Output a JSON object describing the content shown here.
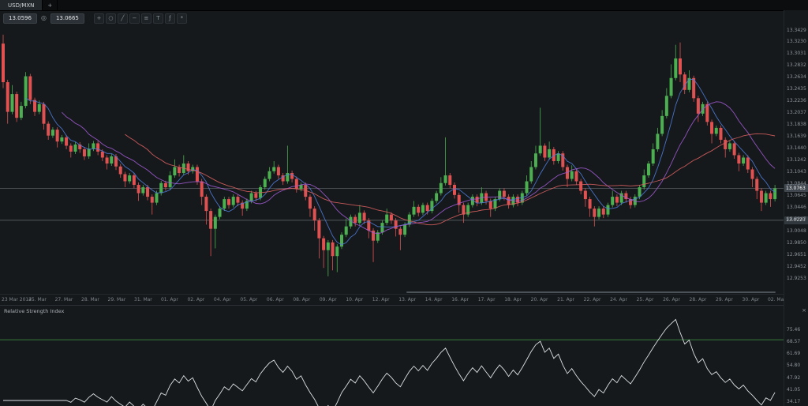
{
  "tabbar": {
    "active_tab": "USD/MXN",
    "new_tab_label": "+"
  },
  "toolbar": {
    "bid": "13.0596",
    "ask": "13.0665",
    "link_glyph": "◎",
    "icons": [
      {
        "name": "crosshair-icon",
        "glyph": "+"
      },
      {
        "name": "zoom-icon",
        "glyph": "○"
      },
      {
        "name": "trendline-icon",
        "glyph": "╱"
      },
      {
        "name": "hline-icon",
        "glyph": "−"
      },
      {
        "name": "fibonacci-icon",
        "glyph": "≡"
      },
      {
        "name": "text-icon",
        "glyph": "T"
      },
      {
        "name": "indicators-icon",
        "glyph": "ƒ"
      },
      {
        "name": "settings-icon",
        "glyph": "*"
      }
    ]
  },
  "price_axis": {
    "labels": [
      "13.3429",
      "13.3230",
      "13.3031",
      "13.2832",
      "13.2634",
      "13.2435",
      "13.2236",
      "13.2037",
      "13.1838",
      "13.1639",
      "13.1440",
      "13.1242",
      "13.1043",
      "13.0844",
      "13.0645",
      "13.0446",
      "13.0247",
      "13.0048",
      "12.9850",
      "12.9651",
      "12.9452",
      "12.9253"
    ]
  },
  "date_axis": {
    "labels": [
      "23 Mar 2014",
      "25. Mar",
      "27. Mar",
      "28. Mar",
      "29. Mar",
      "31. Mar",
      "01. Apr",
      "02. Apr",
      "04. Apr",
      "05. Apr",
      "06. Apr",
      "08. Apr",
      "09. Apr",
      "10. Apr",
      "12. Apr",
      "13. Apr",
      "14. Apr",
      "16. Apr",
      "17. Apr",
      "18. Apr",
      "20. Apr",
      "21. Apr",
      "22. Apr",
      "24. Apr",
      "25. Apr",
      "26. Apr",
      "28. Apr",
      "29. Apr",
      "30. Apr",
      "02. May"
    ]
  },
  "price_markers": {
    "current": "13.0763",
    "level": "13.0223"
  },
  "rsi_panel": {
    "title": "Relative Strength Index",
    "close_glyph": "×",
    "axis_labels": [
      "75.46",
      "68.57",
      "61.69",
      "54.80",
      "47.92",
      "41.05",
      "34.17"
    ]
  },
  "colors": {
    "bull": "#4caf50",
    "bear": "#e05252",
    "ma_fast": "#4f7bd9",
    "ma_mid": "#a15ad1",
    "ma_slow": "#d95f5f",
    "rsi_line": "#dde0e3",
    "rsi_overbought": "#3f9c46",
    "rsi_oversold": "#9c3f3f",
    "level_line": "#a7adb3"
  },
  "chart_data": {
    "type": "candlestick",
    "symbol": "USD/MXN",
    "price_range": {
      "max": 13.3429,
      "min": 12.9253,
      "step": 0.0199
    },
    "horizontal_lines": [
      13.0763,
      13.0223
    ],
    "moving_averages": [
      {
        "name": "ma-fast",
        "period": 6
      },
      {
        "name": "ma-mid",
        "period": 14
      },
      {
        "name": "ma-slow",
        "period": 28
      }
    ],
    "rsi": {
      "period": 14,
      "overbought": 70,
      "oversold": 30
    },
    "candles": [
      [
        13.32,
        13.335,
        13.245,
        13.255
      ],
      [
        13.255,
        13.259,
        13.185,
        13.205
      ],
      [
        13.205,
        13.25,
        13.201,
        13.235
      ],
      [
        13.235,
        13.239,
        13.188,
        13.195
      ],
      [
        13.195,
        13.222,
        13.191,
        13.215
      ],
      [
        13.215,
        13.272,
        13.211,
        13.265
      ],
      [
        13.265,
        13.269,
        13.218,
        13.225
      ],
      [
        13.225,
        13.229,
        13.198,
        13.205
      ],
      [
        13.205,
        13.224,
        13.201,
        13.218
      ],
      [
        13.218,
        13.222,
        13.175,
        13.185
      ],
      [
        13.185,
        13.189,
        13.158,
        13.165
      ],
      [
        13.165,
        13.179,
        13.161,
        13.175
      ],
      [
        13.175,
        13.179,
        13.145,
        13.155
      ],
      [
        13.155,
        13.166,
        13.151,
        13.162
      ],
      [
        13.162,
        13.166,
        13.142,
        13.148
      ],
      [
        13.148,
        13.152,
        13.128,
        13.138
      ],
      [
        13.138,
        13.154,
        13.134,
        13.15
      ],
      [
        13.15,
        13.154,
        13.136,
        13.142
      ],
      [
        13.142,
        13.146,
        13.124,
        13.13
      ],
      [
        13.13,
        13.152,
        13.126,
        13.143
      ],
      [
        13.143,
        13.156,
        13.139,
        13.152
      ],
      [
        13.152,
        13.156,
        13.132,
        13.138
      ],
      [
        13.138,
        13.142,
        13.122,
        13.128
      ],
      [
        13.128,
        13.132,
        13.108,
        13.118
      ],
      [
        13.118,
        13.134,
        13.114,
        13.13
      ],
      [
        13.13,
        13.134,
        13.107,
        13.113
      ],
      [
        13.113,
        13.117,
        13.094,
        13.1
      ],
      [
        13.1,
        13.104,
        13.078,
        13.088
      ],
      [
        13.088,
        13.102,
        13.084,
        13.098
      ],
      [
        13.098,
        13.102,
        13.076,
        13.082
      ],
      [
        13.082,
        13.086,
        13.055,
        13.068
      ],
      [
        13.068,
        13.082,
        13.064,
        13.078
      ],
      [
        13.078,
        13.082,
        13.056,
        13.062
      ],
      [
        13.062,
        13.066,
        13.032,
        13.052
      ],
      [
        13.052,
        13.072,
        13.048,
        13.068
      ],
      [
        13.068,
        13.089,
        13.064,
        13.085
      ],
      [
        13.085,
        13.089,
        13.072,
        13.078
      ],
      [
        13.078,
        13.105,
        13.074,
        13.098
      ],
      [
        13.098,
        13.125,
        13.094,
        13.112
      ],
      [
        13.112,
        13.116,
        13.096,
        13.102
      ],
      [
        13.102,
        13.132,
        13.098,
        13.118
      ],
      [
        13.118,
        13.122,
        13.099,
        13.105
      ],
      [
        13.105,
        13.116,
        13.101,
        13.112
      ],
      [
        13.112,
        13.116,
        13.082,
        13.088
      ],
      [
        13.088,
        13.092,
        13.048,
        13.062
      ],
      [
        13.062,
        13.066,
        13.015,
        13.038
      ],
      [
        13.038,
        13.042,
        12.962,
        13.008
      ],
      [
        13.008,
        13.032,
        12.975,
        13.028
      ],
      [
        13.028,
        13.046,
        13.024,
        13.042
      ],
      [
        13.042,
        13.062,
        13.038,
        13.058
      ],
      [
        13.058,
        13.062,
        13.042,
        13.048
      ],
      [
        13.048,
        13.066,
        13.044,
        13.062
      ],
      [
        13.062,
        13.066,
        13.046,
        13.052
      ],
      [
        13.052,
        13.056,
        13.03,
        13.042
      ],
      [
        13.042,
        13.059,
        13.038,
        13.055
      ],
      [
        13.055,
        13.072,
        13.051,
        13.068
      ],
      [
        13.068,
        13.072,
        13.054,
        13.06
      ],
      [
        13.06,
        13.082,
        13.056,
        13.078
      ],
      [
        13.078,
        13.096,
        13.074,
        13.092
      ],
      [
        13.092,
        13.112,
        13.088,
        13.105
      ],
      [
        13.105,
        13.122,
        13.101,
        13.112
      ],
      [
        13.112,
        13.116,
        13.092,
        13.098
      ],
      [
        13.098,
        13.102,
        13.082,
        13.088
      ],
      [
        13.088,
        13.148,
        13.084,
        13.102
      ],
      [
        13.102,
        13.106,
        13.086,
        13.092
      ],
      [
        13.092,
        13.096,
        13.069,
        13.075
      ],
      [
        13.075,
        13.086,
        13.071,
        13.082
      ],
      [
        13.082,
        13.086,
        13.056,
        13.062
      ],
      [
        13.062,
        13.066,
        13.028,
        13.042
      ],
      [
        13.042,
        13.046,
        13.005,
        13.022
      ],
      [
        13.022,
        13.026,
        12.958,
        12.992
      ],
      [
        12.992,
        12.996,
        12.942,
        12.972
      ],
      [
        12.972,
        12.989,
        12.928,
        12.985
      ],
      [
        12.985,
        12.989,
        12.938,
        12.962
      ],
      [
        12.962,
        12.982,
        12.935,
        12.978
      ],
      [
        12.978,
        13.002,
        12.974,
        12.998
      ],
      [
        12.998,
        13.025,
        12.994,
        13.012
      ],
      [
        13.012,
        13.032,
        13.008,
        13.028
      ],
      [
        13.028,
        13.032,
        13.012,
        13.018
      ],
      [
        13.018,
        13.048,
        13.014,
        13.035
      ],
      [
        13.035,
        13.039,
        13.016,
        13.022
      ],
      [
        13.022,
        13.026,
        12.992,
        13.005
      ],
      [
        13.005,
        13.009,
        12.952,
        12.988
      ],
      [
        12.988,
        13.006,
        12.984,
        13.002
      ],
      [
        13.002,
        13.022,
        12.998,
        13.018
      ],
      [
        13.018,
        13.042,
        13.014,
        13.032
      ],
      [
        13.032,
        13.036,
        13.016,
        13.022
      ],
      [
        13.022,
        13.026,
        12.995,
        13.008
      ],
      [
        13.008,
        13.012,
        12.972,
        12.998
      ],
      [
        12.998,
        13.019,
        12.994,
        13.015
      ],
      [
        13.015,
        13.036,
        13.011,
        13.032
      ],
      [
        13.032,
        13.055,
        13.028,
        13.045
      ],
      [
        13.045,
        13.049,
        13.029,
        13.035
      ],
      [
        13.035,
        13.052,
        13.031,
        13.048
      ],
      [
        13.048,
        13.052,
        13.032,
        13.038
      ],
      [
        13.038,
        13.059,
        13.034,
        13.055
      ],
      [
        13.055,
        13.072,
        13.051,
        13.068
      ],
      [
        13.068,
        13.095,
        13.064,
        13.085
      ],
      [
        13.085,
        13.162,
        13.081,
        13.098
      ],
      [
        13.098,
        13.102,
        13.076,
        13.082
      ],
      [
        13.082,
        13.086,
        13.059,
        13.065
      ],
      [
        13.065,
        13.069,
        13.035,
        13.048
      ],
      [
        13.048,
        13.052,
        13.018,
        13.032
      ],
      [
        13.032,
        13.052,
        13.028,
        13.048
      ],
      [
        13.048,
        13.066,
        13.044,
        13.062
      ],
      [
        13.062,
        13.066,
        13.046,
        13.052
      ],
      [
        13.052,
        13.078,
        13.048,
        13.068
      ],
      [
        13.068,
        13.072,
        13.049,
        13.055
      ],
      [
        13.055,
        13.059,
        13.028,
        13.042
      ],
      [
        13.042,
        13.062,
        13.038,
        13.058
      ],
      [
        13.058,
        13.076,
        13.054,
        13.072
      ],
      [
        13.072,
        13.076,
        13.056,
        13.062
      ],
      [
        13.062,
        13.066,
        13.042,
        13.048
      ],
      [
        13.048,
        13.066,
        13.044,
        13.062
      ],
      [
        13.062,
        13.066,
        13.046,
        13.052
      ],
      [
        13.052,
        13.072,
        13.048,
        13.068
      ],
      [
        13.068,
        13.098,
        13.064,
        13.088
      ],
      [
        13.088,
        13.122,
        13.084,
        13.112
      ],
      [
        13.112,
        13.148,
        13.108,
        13.135
      ],
      [
        13.135,
        13.212,
        13.131,
        13.148
      ],
      [
        13.148,
        13.152,
        13.122,
        13.128
      ],
      [
        13.128,
        13.155,
        13.124,
        13.142
      ],
      [
        13.142,
        13.146,
        13.116,
        13.122
      ],
      [
        13.122,
        13.139,
        13.118,
        13.135
      ],
      [
        13.135,
        13.139,
        13.106,
        13.112
      ],
      [
        13.112,
        13.116,
        13.078,
        13.092
      ],
      [
        13.092,
        13.115,
        13.088,
        13.105
      ],
      [
        13.105,
        13.109,
        13.082,
        13.088
      ],
      [
        13.088,
        13.092,
        13.066,
        13.072
      ],
      [
        13.072,
        13.076,
        13.045,
        13.058
      ],
      [
        13.058,
        13.062,
        13.028,
        13.042
      ],
      [
        13.042,
        13.046,
        13.012,
        13.028
      ],
      [
        13.028,
        13.046,
        13.024,
        13.042
      ],
      [
        13.042,
        13.046,
        13.026,
        13.032
      ],
      [
        13.032,
        13.052,
        13.028,
        13.048
      ],
      [
        13.048,
        13.072,
        13.044,
        13.062
      ],
      [
        13.062,
        13.066,
        13.046,
        13.052
      ],
      [
        13.052,
        13.072,
        13.048,
        13.068
      ],
      [
        13.068,
        13.072,
        13.052,
        13.058
      ],
      [
        13.058,
        13.062,
        13.042,
        13.048
      ],
      [
        13.048,
        13.066,
        13.044,
        13.062
      ],
      [
        13.062,
        13.082,
        13.058,
        13.078
      ],
      [
        13.078,
        13.108,
        13.074,
        13.098
      ],
      [
        13.098,
        13.122,
        13.094,
        13.118
      ],
      [
        13.118,
        13.152,
        13.114,
        13.142
      ],
      [
        13.142,
        13.178,
        13.138,
        13.168
      ],
      [
        13.168,
        13.208,
        13.164,
        13.198
      ],
      [
        13.198,
        13.245,
        13.194,
        13.232
      ],
      [
        13.232,
        13.285,
        13.228,
        13.262
      ],
      [
        13.262,
        13.318,
        13.258,
        13.295
      ],
      [
        13.295,
        13.322,
        13.255,
        13.268
      ],
      [
        13.268,
        13.272,
        13.235,
        13.242
      ],
      [
        13.242,
        13.275,
        13.238,
        13.262
      ],
      [
        13.262,
        13.266,
        13.222,
        13.228
      ],
      [
        13.228,
        13.232,
        13.188,
        13.202
      ],
      [
        13.202,
        13.222,
        13.198,
        13.218
      ],
      [
        13.218,
        13.222,
        13.182,
        13.188
      ],
      [
        13.188,
        13.192,
        13.152,
        13.168
      ],
      [
        13.168,
        13.182,
        13.164,
        13.178
      ],
      [
        13.178,
        13.182,
        13.152,
        13.158
      ],
      [
        13.158,
        13.162,
        13.128,
        13.142
      ],
      [
        13.142,
        13.156,
        13.138,
        13.152
      ],
      [
        13.152,
        13.156,
        13.126,
        13.132
      ],
      [
        13.132,
        13.136,
        13.105,
        13.118
      ],
      [
        13.118,
        13.132,
        13.114,
        13.128
      ],
      [
        13.128,
        13.132,
        13.102,
        13.108
      ],
      [
        13.108,
        13.112,
        13.078,
        13.092
      ],
      [
        13.092,
        13.096,
        13.058,
        13.072
      ],
      [
        13.072,
        13.076,
        13.038,
        13.052
      ],
      [
        13.052,
        13.072,
        13.048,
        13.068
      ],
      [
        13.068,
        13.072,
        13.045,
        13.058
      ],
      [
        13.058,
        13.082,
        13.054,
        13.076
      ]
    ]
  }
}
